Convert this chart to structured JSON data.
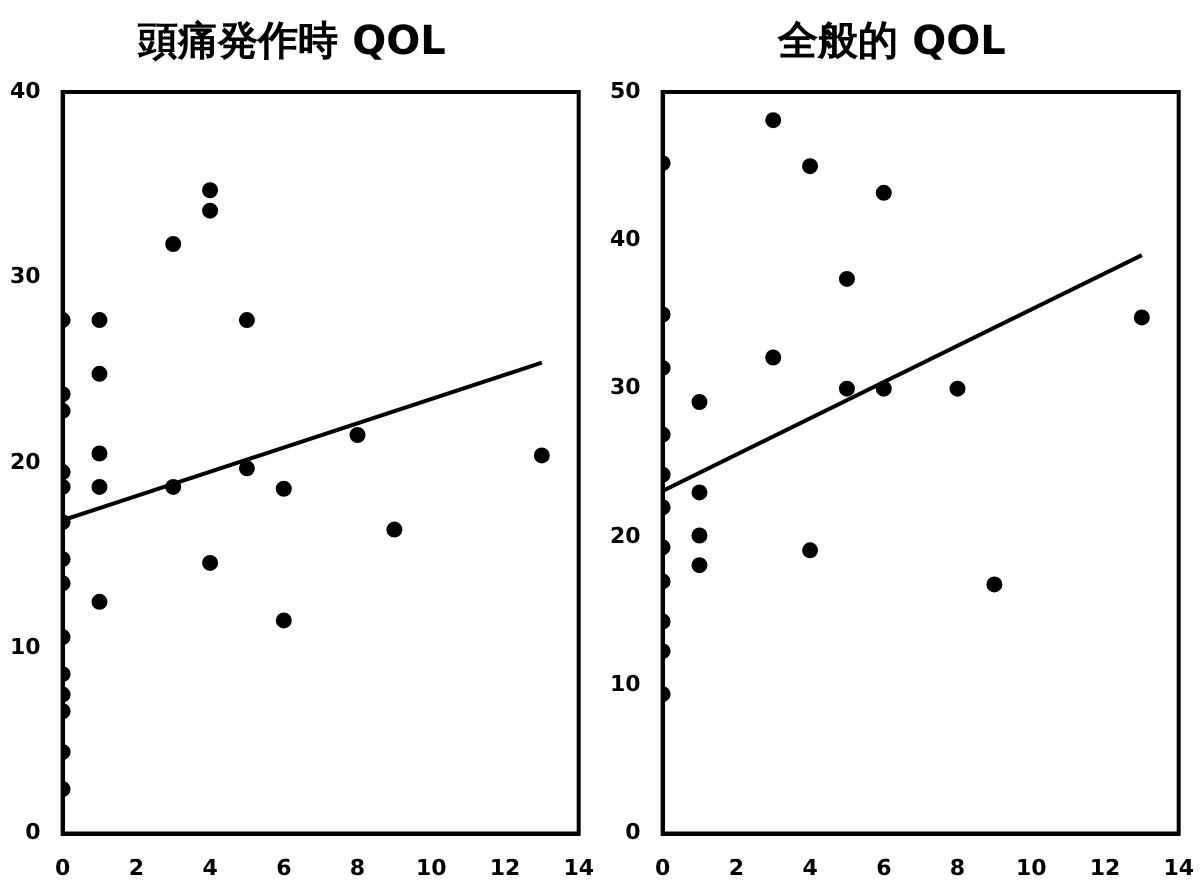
{
  "chart_data": [
    {
      "type": "scatter",
      "title": "頭痛発作時 QOL",
      "xlim": [
        0,
        14
      ],
      "xticks": [
        0,
        2,
        4,
        6,
        8,
        10,
        12,
        14
      ],
      "ylim": [
        0,
        40
      ],
      "yticks": [
        0,
        10,
        20,
        30,
        40
      ],
      "grid": false,
      "series": [
        {
          "marker": "circle",
          "color": "#000000",
          "x": [
            0,
            0,
            0,
            0,
            0,
            0,
            0,
            0,
            0,
            0,
            0,
            0,
            0,
            0,
            1,
            1,
            1,
            1,
            1,
            3,
            3,
            4,
            4,
            4,
            5,
            5,
            6,
            6,
            8,
            9,
            13
          ],
          "values": [
            27.7,
            23.7,
            22.8,
            19.5,
            18.7,
            16.8,
            14.8,
            13.5,
            10.6,
            8.6,
            7.5,
            6.6,
            4.4,
            2.4,
            27.7,
            24.8,
            20.5,
            18.7,
            12.5,
            31.8,
            18.7,
            34.7,
            33.6,
            14.6,
            27.7,
            19.7,
            18.6,
            11.5,
            21.5,
            16.4,
            20.4
          ]
        },
        {
          "type": "line",
          "marker": "none",
          "color": "#000000",
          "x": [
            0,
            13
          ],
          "values": [
            16.9,
            25.4
          ]
        }
      ]
    },
    {
      "type": "scatter",
      "title": "全般的 QOL",
      "xlim": [
        0,
        14
      ],
      "xticks": [
        0,
        2,
        4,
        6,
        8,
        10,
        12,
        14
      ],
      "ylim": [
        0,
        50
      ],
      "yticks": [
        0,
        10,
        20,
        30,
        40,
        50
      ],
      "grid": false,
      "series": [
        {
          "marker": "circle",
          "color": "#000000",
          "x": [
            0,
            0,
            0,
            0,
            0,
            0,
            0,
            0,
            0,
            0,
            0,
            1,
            1,
            1,
            1,
            3,
            3,
            4,
            4,
            5,
            5,
            6,
            6,
            8,
            9,
            13
          ],
          "values": [
            45.2,
            35.0,
            31.4,
            26.9,
            24.2,
            22.0,
            19.3,
            17.0,
            14.3,
            12.3,
            9.4,
            29.1,
            23.0,
            20.1,
            18.1,
            48.1,
            32.1,
            45.0,
            19.1,
            37.4,
            30.0,
            43.2,
            30.0,
            30.0,
            16.8,
            34.8
          ]
        },
        {
          "type": "line",
          "marker": "none",
          "color": "#000000",
          "x": [
            0,
            13
          ],
          "values": [
            23.1,
            39.0
          ]
        }
      ]
    }
  ]
}
